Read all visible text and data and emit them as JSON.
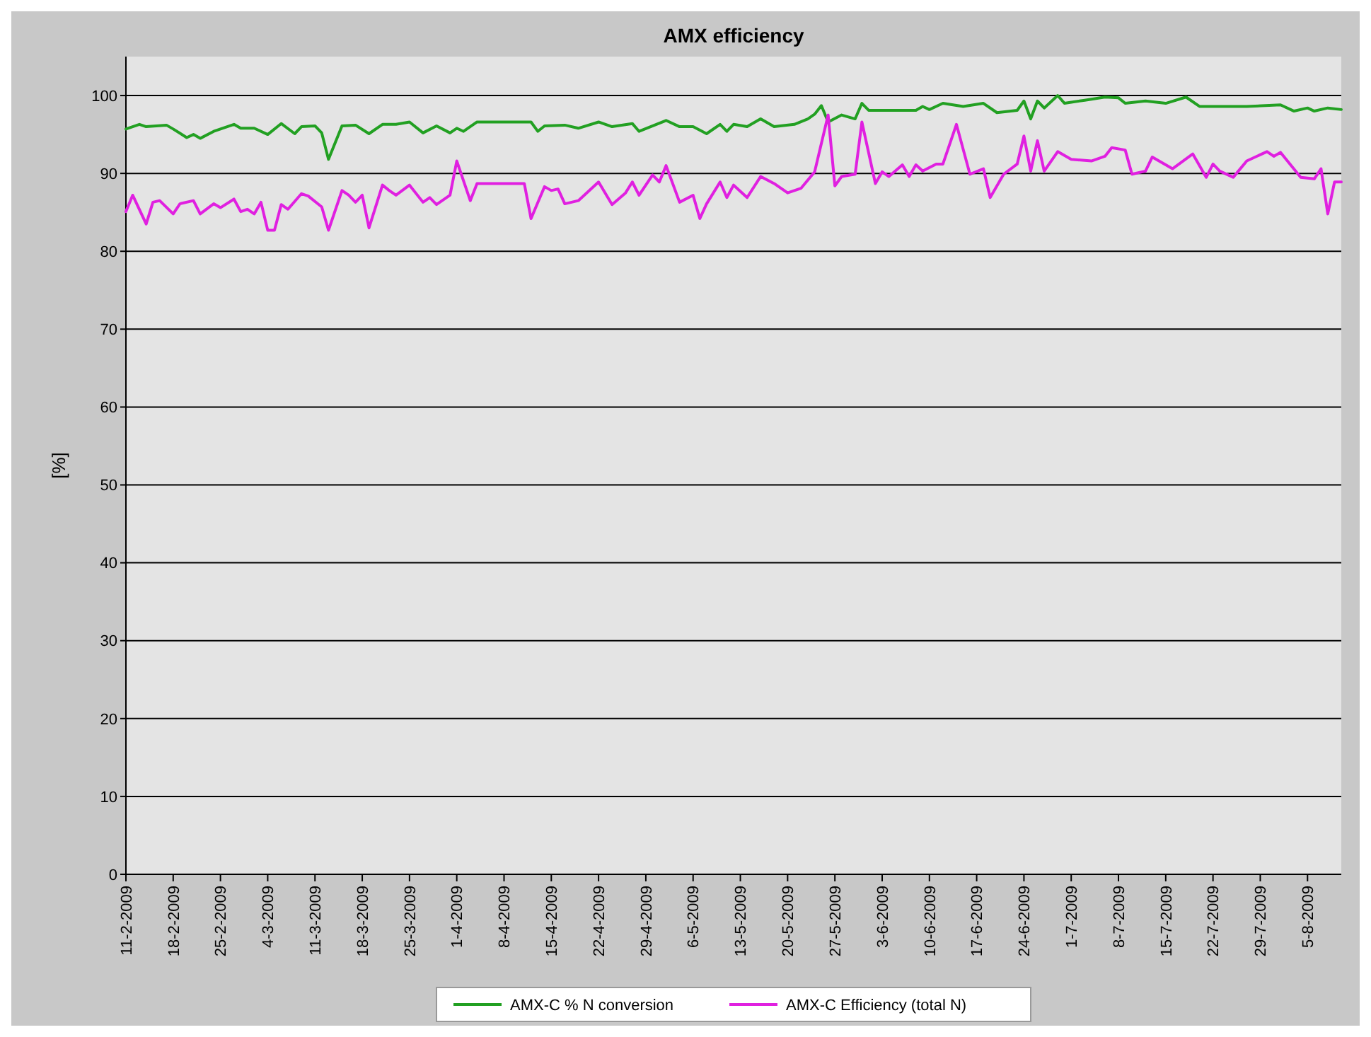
{
  "chart_data": {
    "type": "line",
    "title": "AMX efficiency",
    "ylabel": "[%]",
    "xlim": [
      "2009-02-11",
      "2009-08-10"
    ],
    "ylim": [
      0,
      105
    ],
    "yticks": [
      0,
      10,
      20,
      30,
      40,
      50,
      60,
      70,
      80,
      90,
      100
    ],
    "xticks": [
      {
        "value": "2009-02-11",
        "label": "11-2-2009"
      },
      {
        "value": "2009-02-18",
        "label": "18-2-2009"
      },
      {
        "value": "2009-02-25",
        "label": "25-2-2009"
      },
      {
        "value": "2009-03-04",
        "label": "4-3-2009"
      },
      {
        "value": "2009-03-11",
        "label": "11-3-2009"
      },
      {
        "value": "2009-03-18",
        "label": "18-3-2009"
      },
      {
        "value": "2009-03-25",
        "label": "25-3-2009"
      },
      {
        "value": "2009-04-01",
        "label": "1-4-2009"
      },
      {
        "value": "2009-04-08",
        "label": "8-4-2009"
      },
      {
        "value": "2009-04-15",
        "label": "15-4-2009"
      },
      {
        "value": "2009-04-22",
        "label": "22-4-2009"
      },
      {
        "value": "2009-04-29",
        "label": "29-4-2009"
      },
      {
        "value": "2009-05-06",
        "label": "6-5-2009"
      },
      {
        "value": "2009-05-13",
        "label": "13-5-2009"
      },
      {
        "value": "2009-05-20",
        "label": "20-5-2009"
      },
      {
        "value": "2009-05-27",
        "label": "27-5-2009"
      },
      {
        "value": "2009-06-03",
        "label": "3-6-2009"
      },
      {
        "value": "2009-06-10",
        "label": "10-6-2009"
      },
      {
        "value": "2009-06-17",
        "label": "17-6-2009"
      },
      {
        "value": "2009-06-24",
        "label": "24-6-2009"
      },
      {
        "value": "2009-07-01",
        "label": "1-7-2009"
      },
      {
        "value": "2009-07-08",
        "label": "8-7-2009"
      },
      {
        "value": "2009-07-15",
        "label": "15-7-2009"
      },
      {
        "value": "2009-07-22",
        "label": "22-7-2009"
      },
      {
        "value": "2009-07-29",
        "label": "29-7-2009"
      },
      {
        "value": "2009-08-05",
        "label": "5-8-2009"
      }
    ],
    "grid": "y",
    "legend": "bottom",
    "series": [
      {
        "name": "AMX-C % N conversion",
        "color": "#22a022",
        "x": [
          "2009-02-11",
          "2009-02-13",
          "2009-02-14",
          "2009-02-17",
          "2009-02-18",
          "2009-02-20",
          "2009-02-21",
          "2009-02-22",
          "2009-02-24",
          "2009-02-27",
          "2009-02-28",
          "2009-03-02",
          "2009-03-04",
          "2009-03-06",
          "2009-03-08",
          "2009-03-09",
          "2009-03-11",
          "2009-03-12",
          "2009-03-13",
          "2009-03-15",
          "2009-03-17",
          "2009-03-19",
          "2009-03-21",
          "2009-03-23",
          "2009-03-25",
          "2009-03-27",
          "2009-03-29",
          "2009-03-31",
          "2009-04-01",
          "2009-04-02",
          "2009-04-04",
          "2009-04-12",
          "2009-04-13",
          "2009-04-14",
          "2009-04-17",
          "2009-04-19",
          "2009-04-22",
          "2009-04-24",
          "2009-04-27",
          "2009-04-28",
          "2009-05-02",
          "2009-05-04",
          "2009-05-06",
          "2009-05-08",
          "2009-05-10",
          "2009-05-11",
          "2009-05-12",
          "2009-05-14",
          "2009-05-16",
          "2009-05-18",
          "2009-05-21",
          "2009-05-23",
          "2009-05-24",
          "2009-05-25",
          "2009-05-26",
          "2009-05-28",
          "2009-05-30",
          "2009-05-31",
          "2009-06-01",
          "2009-06-08",
          "2009-06-09",
          "2009-06-10",
          "2009-06-12",
          "2009-06-15",
          "2009-06-18",
          "2009-06-20",
          "2009-06-23",
          "2009-06-24",
          "2009-06-25",
          "2009-06-26",
          "2009-06-27",
          "2009-06-29",
          "2009-06-30",
          "2009-07-03",
          "2009-07-06",
          "2009-07-08",
          "2009-07-09",
          "2009-07-12",
          "2009-07-15",
          "2009-07-18",
          "2009-07-20",
          "2009-07-27",
          "2009-08-01",
          "2009-08-03",
          "2009-08-05",
          "2009-08-06",
          "2009-08-08",
          "2009-08-10"
        ],
        "values": [
          95.7,
          96.3,
          96.0,
          96.2,
          95.7,
          94.6,
          95.0,
          94.5,
          95.4,
          96.3,
          95.8,
          95.8,
          95.0,
          96.4,
          95.1,
          96.0,
          96.1,
          95.2,
          91.8,
          96.1,
          96.2,
          95.1,
          96.3,
          96.3,
          96.6,
          95.2,
          96.1,
          95.2,
          95.8,
          95.4,
          96.6,
          96.6,
          95.4,
          96.1,
          96.2,
          95.8,
          96.6,
          96.0,
          96.4,
          95.4,
          96.8,
          96.0,
          96.0,
          95.1,
          96.3,
          95.4,
          96.3,
          96.0,
          97.0,
          96.0,
          96.3,
          97.0,
          97.6,
          98.7,
          96.6,
          97.5,
          97.0,
          99.0,
          98.1,
          98.1,
          98.6,
          98.2,
          99.0,
          98.6,
          99.0,
          97.8,
          98.1,
          99.3,
          97.0,
          99.3,
          98.4,
          100.0,
          99.0,
          99.4,
          99.8,
          99.7,
          99.0,
          99.3,
          99.0,
          99.8,
          98.6,
          98.6,
          98.8,
          98.0,
          98.4,
          98.0,
          98.4,
          98.2
        ]
      },
      {
        "name": "AMX-C Efficiency (total N)",
        "color": "#e020e0",
        "x": [
          "2009-02-11",
          "2009-02-12",
          "2009-02-14",
          "2009-02-15",
          "2009-02-16",
          "2009-02-18",
          "2009-02-19",
          "2009-02-21",
          "2009-02-22",
          "2009-02-24",
          "2009-02-25",
          "2009-02-27",
          "2009-02-28",
          "2009-03-01",
          "2009-03-02",
          "2009-03-03",
          "2009-03-04",
          "2009-03-05",
          "2009-03-06",
          "2009-03-07",
          "2009-03-09",
          "2009-03-10",
          "2009-03-12",
          "2009-03-13",
          "2009-03-15",
          "2009-03-16",
          "2009-03-17",
          "2009-03-18",
          "2009-03-19",
          "2009-03-21",
          "2009-03-22",
          "2009-03-23",
          "2009-03-25",
          "2009-03-27",
          "2009-03-28",
          "2009-03-29",
          "2009-03-31",
          "2009-04-01",
          "2009-04-03",
          "2009-04-04",
          "2009-04-11",
          "2009-04-12",
          "2009-04-14",
          "2009-04-15",
          "2009-04-16",
          "2009-04-17",
          "2009-04-19",
          "2009-04-22",
          "2009-04-24",
          "2009-04-26",
          "2009-04-27",
          "2009-04-28",
          "2009-04-30",
          "2009-05-01",
          "2009-05-02",
          "2009-05-04",
          "2009-05-06",
          "2009-05-07",
          "2009-05-08",
          "2009-05-10",
          "2009-05-11",
          "2009-05-12",
          "2009-05-14",
          "2009-05-16",
          "2009-05-18",
          "2009-05-20",
          "2009-05-22",
          "2009-05-24",
          "2009-05-26",
          "2009-05-27",
          "2009-05-28",
          "2009-05-30",
          "2009-05-31",
          "2009-06-02",
          "2009-06-03",
          "2009-06-04",
          "2009-06-06",
          "2009-06-07",
          "2009-06-08",
          "2009-06-09",
          "2009-06-11",
          "2009-06-12",
          "2009-06-14",
          "2009-06-16",
          "2009-06-18",
          "2009-06-19",
          "2009-06-21",
          "2009-06-23",
          "2009-06-24",
          "2009-06-25",
          "2009-06-26",
          "2009-06-27",
          "2009-06-29",
          "2009-07-01",
          "2009-07-04",
          "2009-07-06",
          "2009-07-07",
          "2009-07-09",
          "2009-07-10",
          "2009-07-12",
          "2009-07-13",
          "2009-07-16",
          "2009-07-19",
          "2009-07-21",
          "2009-07-22",
          "2009-07-23",
          "2009-07-25",
          "2009-07-27",
          "2009-07-30",
          "2009-07-31",
          "2009-08-01",
          "2009-08-04",
          "2009-08-06",
          "2009-08-07",
          "2009-08-08",
          "2009-08-09",
          "2009-08-10"
        ],
        "values": [
          85.1,
          87.2,
          83.5,
          86.3,
          86.5,
          84.8,
          86.1,
          86.5,
          84.8,
          86.1,
          85.6,
          86.7,
          85.1,
          85.4,
          84.8,
          86.3,
          82.7,
          82.7,
          86.0,
          85.4,
          87.4,
          87.1,
          85.7,
          82.7,
          87.8,
          87.2,
          86.3,
          87.2,
          83.0,
          88.5,
          87.8,
          87.2,
          88.5,
          86.3,
          86.9,
          86.0,
          87.2,
          91.6,
          86.5,
          88.7,
          88.7,
          84.2,
          88.3,
          87.8,
          88.0,
          86.1,
          86.5,
          88.9,
          86.0,
          87.5,
          88.9,
          87.2,
          89.8,
          88.9,
          91.0,
          86.3,
          87.2,
          84.2,
          86.1,
          88.9,
          86.9,
          88.5,
          86.9,
          89.6,
          88.7,
          87.5,
          88.1,
          90.2,
          97.5,
          88.4,
          89.6,
          89.9,
          96.6,
          88.7,
          90.2,
          89.6,
          91.1,
          89.6,
          91.1,
          90.3,
          91.2,
          91.2,
          96.3,
          89.9,
          90.6,
          86.9,
          89.9,
          91.2,
          94.8,
          90.3,
          94.2,
          90.3,
          92.8,
          91.8,
          91.6,
          92.2,
          93.3,
          93.0,
          89.9,
          90.3,
          92.1,
          90.6,
          92.5,
          89.5,
          91.2,
          90.3,
          89.5,
          91.6,
          92.8,
          92.2,
          92.7,
          89.5,
          89.3,
          90.6,
          84.8,
          88.9,
          88.9
        ]
      }
    ]
  }
}
